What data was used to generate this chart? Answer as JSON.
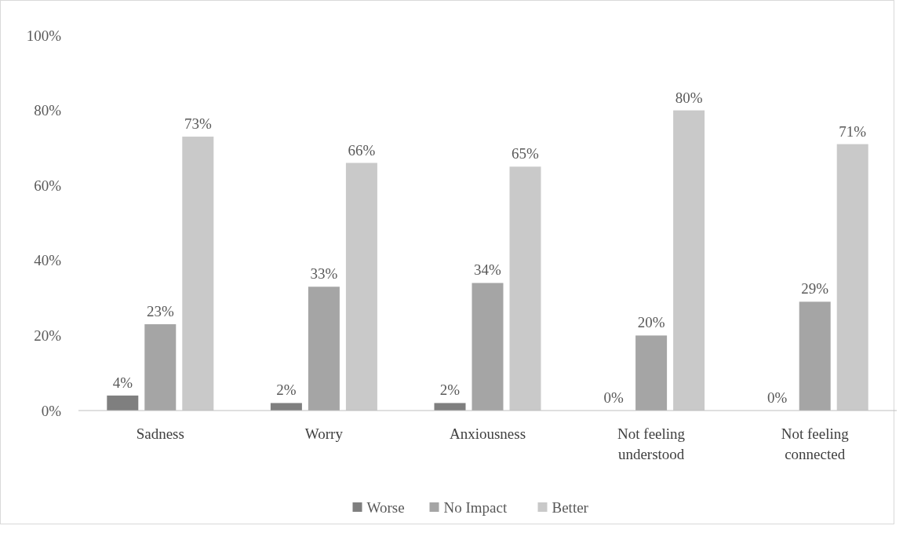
{
  "chart_data": {
    "type": "bar",
    "categories": [
      "Sadness",
      "Worry",
      "Anxiousness",
      "Not feeling understood",
      "Not feeling connected"
    ],
    "series": [
      {
        "name": "Worse",
        "color": "#7f7f7f",
        "values": [
          4,
          2,
          2,
          0,
          0
        ]
      },
      {
        "name": "No Impact",
        "color": "#a5a5a5",
        "values": [
          23,
          33,
          34,
          20,
          29
        ]
      },
      {
        "name": "Better",
        "color": "#c9c9c9",
        "values": [
          73,
          66,
          65,
          80,
          71
        ]
      }
    ],
    "ylim": [
      0,
      100
    ],
    "yticks": [
      {
        "value": 0,
        "label": "0%"
      },
      {
        "value": 20,
        "label": "20%"
      },
      {
        "value": 40,
        "label": "40%"
      },
      {
        "value": 60,
        "label": "60%"
      },
      {
        "value": 80,
        "label": "80%"
      },
      {
        "value": 100,
        "label": "100%"
      }
    ],
    "value_labels": [
      [
        "4%",
        "2%",
        "2%",
        "0%",
        "0%"
      ],
      [
        "23%",
        "33%",
        "34%",
        "20%",
        "29%"
      ],
      [
        "73%",
        "66%",
        "65%",
        "80%",
        "71%"
      ]
    ],
    "grid": false,
    "legend": "bottom"
  }
}
